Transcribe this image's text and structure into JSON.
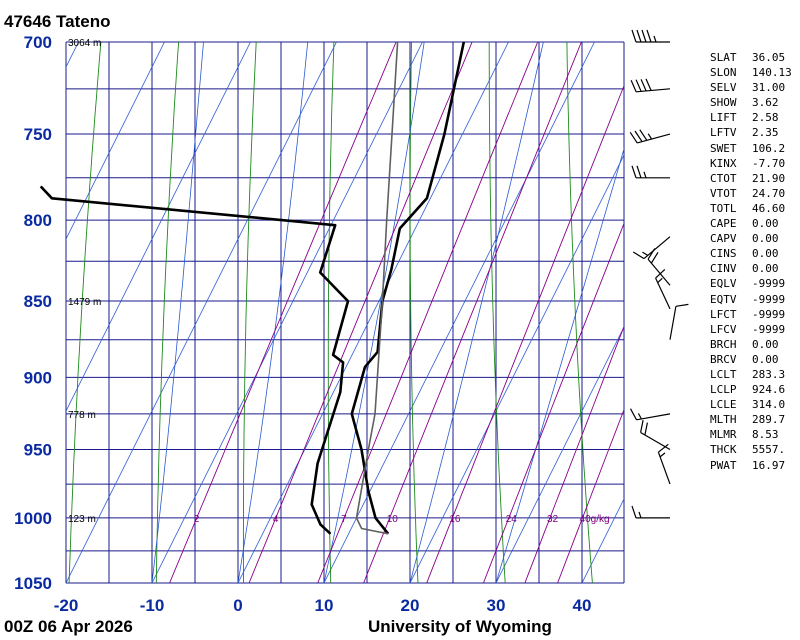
{
  "header": {
    "title": "47646  Tateno"
  },
  "footer": {
    "left": "00Z 06 Apr 2026",
    "right": "University of Wyoming"
  },
  "indices": [
    {
      "name": "SLAT",
      "value": "36.05"
    },
    {
      "name": "SLON",
      "value": "140.13"
    },
    {
      "name": "SELV",
      "value": "31.00"
    },
    {
      "name": "SHOW",
      "value": "3.62"
    },
    {
      "name": "LIFT",
      "value": "2.58"
    },
    {
      "name": "LFTV",
      "value": "2.35"
    },
    {
      "name": "SWET",
      "value": "106.2"
    },
    {
      "name": "KINX",
      "value": "-7.70"
    },
    {
      "name": "CTOT",
      "value": "21.90"
    },
    {
      "name": "VTOT",
      "value": "24.70"
    },
    {
      "name": "TOTL",
      "value": "46.60"
    },
    {
      "name": "CAPE",
      "value": "0.00"
    },
    {
      "name": "CAPV",
      "value": "0.00"
    },
    {
      "name": "CINS",
      "value": "0.00"
    },
    {
      "name": "CINV",
      "value": "0.00"
    },
    {
      "name": "EQLV",
      "value": "-9999"
    },
    {
      "name": "EQTV",
      "value": "-9999"
    },
    {
      "name": "LFCT",
      "value": "-9999"
    },
    {
      "name": "LFCV",
      "value": "-9999"
    },
    {
      "name": "BRCH",
      "value": "0.00"
    },
    {
      "name": "BRCV",
      "value": "0.00"
    },
    {
      "name": "LCLT",
      "value": "283.3"
    },
    {
      "name": "LCLP",
      "value": "924.6"
    },
    {
      "name": "LCLE",
      "value": "314.0"
    },
    {
      "name": "MLTH",
      "value": "289.7"
    },
    {
      "name": "MLMR",
      "value": "8.53"
    },
    {
      "name": "THCK",
      "value": "5557."
    },
    {
      "name": "PWAT",
      "value": "16.97"
    }
  ],
  "chart_data": {
    "type": "line",
    "pressure_levels": [
      700,
      750,
      800,
      850,
      900,
      950,
      1000,
      1050
    ],
    "pressure_tick_labels": [
      "700",
      "750",
      "800",
      "850",
      "900",
      "950",
      "1000",
      "1050"
    ],
    "temperature_ticks": [
      -20,
      -10,
      0,
      10,
      20,
      30,
      40
    ],
    "temperature_tick_labels": [
      "-20",
      "-10",
      "0",
      "10",
      "20",
      "30",
      "40"
    ],
    "pressure_range": [
      700,
      1050
    ],
    "temperature_range_at_bottom": [
      -20,
      45
    ],
    "height_labels": [
      {
        "pressure": 700,
        "label": "3064 m"
      },
      {
        "pressure": 850,
        "label": "1479 m"
      },
      {
        "pressure": 925,
        "label": "778 m"
      },
      {
        "pressure": 1000,
        "label": "123 m"
      }
    ],
    "mixing_ratio_labels": [
      {
        "value": 2,
        "label": "2"
      },
      {
        "value": 4,
        "label": "4"
      },
      {
        "value": 7,
        "label": "7"
      },
      {
        "value": 10,
        "label": "10"
      },
      {
        "value": 16,
        "label": "16"
      },
      {
        "value": 24,
        "label": "24"
      },
      {
        "value": 32,
        "label": "32"
      },
      {
        "value": 40,
        "label": "40g/kg"
      }
    ],
    "dry_adiabats_theta_k": [
      250,
      260,
      270,
      280,
      290,
      300,
      310,
      320,
      330,
      340,
      350,
      360,
      370,
      380,
      390,
      400,
      410
    ],
    "moist_adiabats_start_c": [
      -10,
      0,
      10,
      20,
      30
    ],
    "series": [
      {
        "name": "temperature",
        "color": "#000000",
        "points": [
          {
            "p": 700,
            "t": -5.2
          },
          {
            "p": 750,
            "t": -2.1
          },
          {
            "p": 787,
            "t": -0.4
          },
          {
            "p": 805,
            "t": -1.8
          },
          {
            "p": 830,
            "t": -0.4
          },
          {
            "p": 850,
            "t": 0.4
          },
          {
            "p": 883,
            "t": 2.8
          },
          {
            "p": 893,
            "t": 2.2
          },
          {
            "p": 925,
            "t": 3.4
          },
          {
            "p": 950,
            "t": 6.6
          },
          {
            "p": 980,
            "t": 9.8
          },
          {
            "p": 1000,
            "t": 12.2
          },
          {
            "p": 1012,
            "t": 14.6
          }
        ]
      },
      {
        "name": "dewpoint",
        "color": "#000000",
        "points": [
          {
            "p": 780,
            "t": -46
          },
          {
            "p": 787,
            "t": -44
          },
          {
            "p": 803,
            "t": -9.5
          },
          {
            "p": 832,
            "t": -8.5
          },
          {
            "p": 850,
            "t": -3.6
          },
          {
            "p": 885,
            "t": -2.2
          },
          {
            "p": 890,
            "t": -0.6
          },
          {
            "p": 910,
            "t": 0.8
          },
          {
            "p": 960,
            "t": 2.3
          },
          {
            "p": 990,
            "t": 4.0
          },
          {
            "p": 1005,
            "t": 6.2
          },
          {
            "p": 1012,
            "t": 7.9
          }
        ]
      },
      {
        "name": "parcel",
        "color": "#606060",
        "points": [
          {
            "p": 700,
            "t": -12.9
          },
          {
            "p": 750,
            "t": -8.2
          },
          {
            "p": 800,
            "t": -3.8
          },
          {
            "p": 850,
            "t": 0.4
          },
          {
            "p": 925,
            "t": 6.1
          },
          {
            "p": 950,
            "t": 7.4
          },
          {
            "p": 1000,
            "t": 10.0
          },
          {
            "p": 1008,
            "t": 11.2
          },
          {
            "p": 1012,
            "t": 14.6
          }
        ]
      }
    ],
    "wind_barbs": [
      {
        "p": 700,
        "dir": 270,
        "kt": 45
      },
      {
        "p": 725,
        "dir": 265,
        "kt": 40
      },
      {
        "p": 750,
        "dir": 255,
        "kt": 35
      },
      {
        "p": 775,
        "dir": 270,
        "kt": 25
      },
      {
        "p": 810,
        "dir": 230,
        "kt": 15
      },
      {
        "p": 840,
        "dir": 320,
        "kt": 20
      },
      {
        "p": 855,
        "dir": 335,
        "kt": 15
      },
      {
        "p": 875,
        "dir": 10,
        "kt": 10
      },
      {
        "p": 925,
        "dir": 260,
        "kt": 15
      },
      {
        "p": 950,
        "dir": 300,
        "kt": 20
      },
      {
        "p": 975,
        "dir": 340,
        "kt": 15
      },
      {
        "p": 1000,
        "dir": 270,
        "kt": 15
      }
    ]
  }
}
